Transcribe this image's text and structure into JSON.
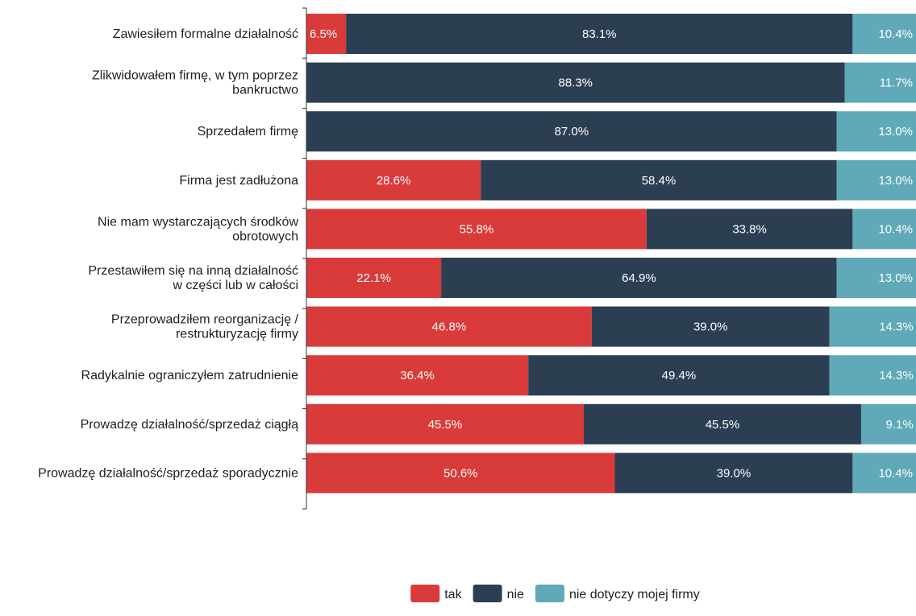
{
  "chart_data": {
    "type": "bar",
    "orientation": "horizontal",
    "stacked": true,
    "categories": [
      [
        "Zawiesiłem formalne działalność"
      ],
      [
        "Zlikwidowałem firmę, w tym poprzez",
        "bankructwo"
      ],
      [
        "Sprzedałem firmę"
      ],
      [
        "Firma jest zadłużona"
      ],
      [
        "Nie mam wystarczających środków",
        "obrotowych"
      ],
      [
        "Przestawiłem się na inną działalność",
        "w części lub w całości"
      ],
      [
        "Przeprowadziłem reorganizację /",
        "restrukturyzację firmy"
      ],
      [
        "Radykalnie ograniczyłem zatrudnienie"
      ],
      [
        "Prowadzę działalność/sprzedaż ciągłą"
      ],
      [
        "Prowadzę działalność/sprzedaż sporadycznie"
      ]
    ],
    "series": [
      {
        "name": "tak",
        "color": "#d93a3a",
        "values": [
          6.5,
          0,
          0,
          28.6,
          55.8,
          22.1,
          46.8,
          36.4,
          45.5,
          50.6
        ],
        "labels": [
          "6.5%",
          "",
          "",
          "28.6%",
          "55.8%",
          "22.1%",
          "46.8%",
          "36.4%",
          "45.5%",
          "50.6%"
        ]
      },
      {
        "name": "nie",
        "color": "#2b3e52",
        "values": [
          83.1,
          88.3,
          87.0,
          58.4,
          33.8,
          64.9,
          39.0,
          49.4,
          45.5,
          39.0
        ],
        "labels": [
          "83.1%",
          "88.3%",
          "87.0%",
          "58.4%",
          "33.8%",
          "64.9%",
          "39.0%",
          "49.4%",
          "45.5%",
          "39.0%"
        ]
      },
      {
        "name": "nie dotyczy mojej firmy",
        "color": "#5fa9b8",
        "values": [
          10.4,
          11.7,
          13.0,
          13.0,
          10.4,
          13.0,
          14.3,
          14.3,
          9.1,
          10.4
        ],
        "labels": [
          "10.4%",
          "11.7%",
          "13.0%",
          "13.0%",
          "10.4%",
          "13.0%",
          "14.3%",
          "14.3%",
          "9.1%",
          "10.4%"
        ]
      }
    ],
    "xlim": [
      0,
      100
    ],
    "legend_position": "bottom-center",
    "grid": false
  }
}
